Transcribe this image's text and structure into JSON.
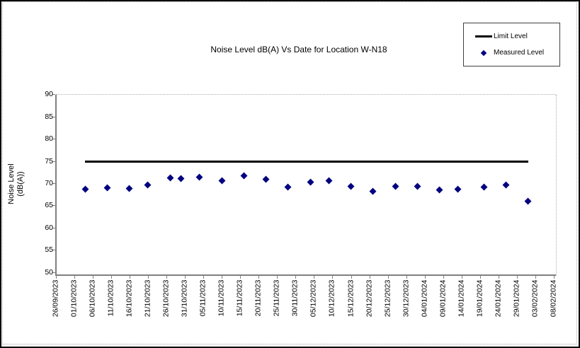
{
  "chart": {
    "title": "Noise Level dB(A) Vs Date for Location W-N18",
    "y_axis_title_line1": "Noise Level",
    "y_axis_title_line2": "(dB(A))",
    "legend": {
      "limit_label": "Limit Level",
      "measured_label": "Measured Level"
    },
    "colors": {
      "limit_line": "#000000",
      "measured_marker": "#000080",
      "axis": "#808080"
    }
  },
  "chart_data": {
    "type": "scatter",
    "title": "Noise Level dB(A) Vs Date for Location W-N18",
    "xlabel": "",
    "ylabel": "Noise Level (dB(A))",
    "ylim": [
      50,
      90
    ],
    "y_tick_step": 5,
    "y_tick_labels": [
      "90",
      "85",
      "80",
      "75",
      "70",
      "65",
      "60",
      "55",
      "50"
    ],
    "x_tick_labels": [
      "26/09/2023",
      "01/10/2023",
      "06/10/2023",
      "11/10/2023",
      "16/10/2023",
      "21/10/2023",
      "26/10/2023",
      "31/10/2023",
      "05/11/2023",
      "10/11/2023",
      "15/11/2023",
      "20/11/2023",
      "25/11/2023",
      "30/11/2023",
      "05/12/2023",
      "10/12/2023",
      "15/12/2023",
      "20/12/2023",
      "25/12/2023",
      "30/12/2023",
      "04/01/2024",
      "09/01/2024",
      "14/01/2024",
      "19/01/2024",
      "24/01/2024",
      "29/01/2024",
      "03/02/2024",
      "08/02/2024"
    ],
    "legend_position": "top-right",
    "grid": "off",
    "series": [
      {
        "name": "Limit Level",
        "type": "line",
        "color": "#000000",
        "x": [
          "04/10/2023",
          "01/02/2024"
        ],
        "values": [
          75,
          75
        ]
      },
      {
        "name": "Measured Level",
        "type": "scatter",
        "color": "#000080",
        "points": [
          {
            "date": "04/10/2023",
            "value": 68.7
          },
          {
            "date": "10/10/2023",
            "value": 69.0
          },
          {
            "date": "16/10/2023",
            "value": 68.9
          },
          {
            "date": "21/10/2023",
            "value": 69.6
          },
          {
            "date": "27/10/2023",
            "value": 71.2
          },
          {
            "date": "30/10/2023",
            "value": 71.1
          },
          {
            "date": "04/11/2023",
            "value": 71.5
          },
          {
            "date": "10/11/2023",
            "value": 70.6
          },
          {
            "date": "16/11/2023",
            "value": 71.8
          },
          {
            "date": "22/11/2023",
            "value": 71.0
          },
          {
            "date": "28/11/2023",
            "value": 69.2
          },
          {
            "date": "04/12/2023",
            "value": 70.3
          },
          {
            "date": "09/12/2023",
            "value": 70.6
          },
          {
            "date": "15/12/2023",
            "value": 69.3
          },
          {
            "date": "21/12/2023",
            "value": 68.3
          },
          {
            "date": "27/12/2023",
            "value": 69.3
          },
          {
            "date": "02/01/2024",
            "value": 69.4
          },
          {
            "date": "08/01/2024",
            "value": 68.5
          },
          {
            "date": "13/01/2024",
            "value": 68.7
          },
          {
            "date": "20/01/2024",
            "value": 69.2
          },
          {
            "date": "26/01/2024",
            "value": 69.6
          },
          {
            "date": "01/02/2024",
            "value": 66.0
          }
        ]
      }
    ]
  }
}
